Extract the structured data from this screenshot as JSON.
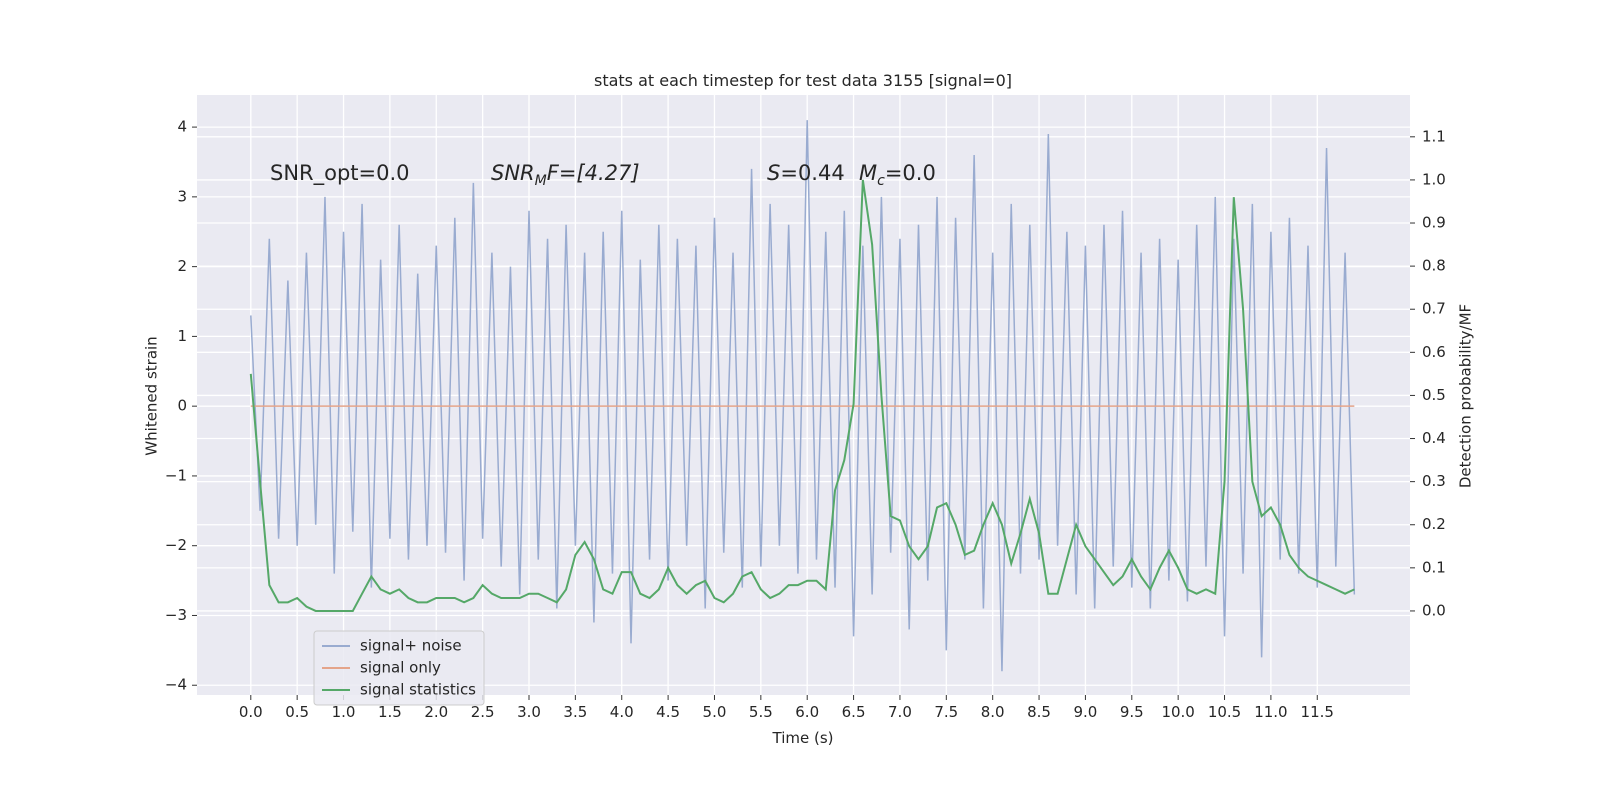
{
  "chart_data": {
    "type": "line",
    "title": "stats at each timestep for test data 3155 [signal=0]",
    "x_label": "Time (s)",
    "y_label": "Whitened strain",
    "y2_label": "Detection probability/MF",
    "annotations": [
      "SNR_opt=0.0",
      [
        "SNR",
        "M",
        "F=[4.27]"
      ],
      [
        "S",
        "=0.44"
      ],
      [
        "M",
        "c",
        "=0.0"
      ]
    ],
    "grid": true,
    "legend": "lower left",
    "xlim": [
      -0.58,
      12.5
    ],
    "ylim": [
      -4.14,
      4.46
    ],
    "y2lim": [
      -0.195,
      1.197
    ],
    "xticks": [
      {
        "value": 0,
        "label": "0.0"
      },
      {
        "value": 0.5,
        "label": "0.5"
      },
      {
        "value": 1,
        "label": "1.0"
      },
      {
        "value": 1.5,
        "label": "1.5"
      },
      {
        "value": 2,
        "label": "2.0"
      },
      {
        "value": 2.5,
        "label": "2.5"
      },
      {
        "value": 3,
        "label": "3.0"
      },
      {
        "value": 3.5,
        "label": "3.5"
      },
      {
        "value": 4,
        "label": "4.0"
      },
      {
        "value": 4.5,
        "label": "4.5"
      },
      {
        "value": 5,
        "label": "5.0"
      },
      {
        "value": 5.5,
        "label": "5.5"
      },
      {
        "value": 6,
        "label": "6.0"
      },
      {
        "value": 6.5,
        "label": "6.5"
      },
      {
        "value": 7,
        "label": "7.0"
      },
      {
        "value": 7.5,
        "label": "7.5"
      },
      {
        "value": 8,
        "label": "8.0"
      },
      {
        "value": 8.5,
        "label": "8.5"
      },
      {
        "value": 9,
        "label": "9.0"
      },
      {
        "value": 9.5,
        "label": "9.5"
      },
      {
        "value": 10,
        "label": "10.0"
      },
      {
        "value": 10.5,
        "label": "10.5"
      },
      {
        "value": 11,
        "label": "11.0"
      },
      {
        "value": 11.5,
        "label": "11.5"
      }
    ],
    "yticks": [
      {
        "value": -4,
        "label": "−4"
      },
      {
        "value": -3,
        "label": "−3"
      },
      {
        "value": -2,
        "label": "−2"
      },
      {
        "value": -1,
        "label": "−1"
      },
      0,
      1,
      2,
      3,
      4
    ],
    "y2ticks": [
      {
        "value": 0,
        "label": "0.0"
      },
      {
        "value": 0.1,
        "label": "0.1"
      },
      {
        "value": 0.2,
        "label": "0.2"
      },
      {
        "value": 0.3,
        "label": "0.3"
      },
      {
        "value": 0.4,
        "label": "0.4"
      },
      {
        "value": 0.5,
        "label": "0.5"
      },
      {
        "value": 0.6,
        "label": "0.6"
      },
      {
        "value": 0.7,
        "label": "0.7"
      },
      {
        "value": 0.8,
        "label": "0.8"
      },
      {
        "value": 0.9,
        "label": "0.9"
      },
      {
        "value": 1,
        "label": "1.0"
      },
      {
        "value": 1.1,
        "label": "1.1"
      }
    ],
    "x": [
      0,
      0.1,
      0.2,
      0.3,
      0.4,
      0.5,
      0.6,
      0.7,
      0.8,
      0.9,
      1,
      1.1,
      1.2,
      1.3,
      1.4,
      1.5,
      1.6,
      1.7,
      1.8,
      1.9,
      2,
      2.1,
      2.2,
      2.3,
      2.4,
      2.5,
      2.6,
      2.7,
      2.8,
      2.9,
      3,
      3.1,
      3.2,
      3.3,
      3.4,
      3.5,
      3.6,
      3.7,
      3.8,
      3.9,
      4,
      4.1,
      4.2,
      4.3,
      4.4,
      4.5,
      4.6,
      4.7,
      4.8,
      4.9,
      5,
      5.1,
      5.2,
      5.3,
      5.4,
      5.5,
      5.6,
      5.7,
      5.8,
      5.9,
      6,
      6.1,
      6.2,
      6.3,
      6.4,
      6.5,
      6.6,
      6.7,
      6.8,
      6.9,
      7,
      7.1,
      7.2,
      7.3,
      7.4,
      7.5,
      7.6,
      7.7,
      7.8,
      7.9,
      8,
      8.1,
      8.2,
      8.3,
      8.4,
      8.5,
      8.6,
      8.7,
      8.8,
      8.9,
      9,
      9.1,
      9.2,
      9.3,
      9.4,
      9.5,
      9.6,
      9.7,
      9.8,
      9.9,
      10,
      10.1,
      10.2,
      10.3,
      10.4,
      10.5,
      10.6,
      10.7,
      10.8,
      10.9,
      11,
      11.1,
      11.2,
      11.3,
      11.4,
      11.5,
      11.6,
      11.7,
      11.8,
      11.9
    ],
    "series": [
      {
        "name": "signal+ noise",
        "color": "#99abd0",
        "axis": "y",
        "values": [
          1.3,
          -1.5,
          2.4,
          -1.9,
          1.8,
          -2.0,
          2.2,
          -1.7,
          3.0,
          -2.4,
          2.5,
          -1.8,
          2.9,
          -2.6,
          2.1,
          -1.9,
          2.6,
          -2.2,
          1.9,
          -2.0,
          2.3,
          -2.1,
          2.7,
          -2.5,
          3.2,
          -1.9,
          2.2,
          -2.3,
          2.0,
          -2.7,
          2.8,
          -2.2,
          2.4,
          -2.9,
          2.6,
          -2.0,
          2.2,
          -3.1,
          2.5,
          -2.4,
          2.8,
          -3.4,
          2.1,
          -2.2,
          2.6,
          -2.5,
          2.4,
          -2.0,
          2.3,
          -2.9,
          2.7,
          -2.1,
          2.2,
          -2.6,
          3.4,
          -2.3,
          2.9,
          -2.0,
          2.6,
          -2.4,
          4.1,
          -2.2,
          2.5,
          -2.6,
          2.8,
          -3.3,
          2.3,
          -2.7,
          3.0,
          -2.1,
          2.4,
          -3.2,
          2.6,
          -2.5,
          3.0,
          -3.5,
          2.7,
          -2.2,
          3.6,
          -2.9,
          2.2,
          -3.8,
          2.9,
          -2.4,
          2.6,
          -2.2,
          3.9,
          -2.0,
          2.5,
          -2.7,
          2.3,
          -2.9,
          2.6,
          -2.3,
          2.8,
          -2.6,
          2.2,
          -2.9,
          2.4,
          -2.5,
          2.1,
          -2.8,
          2.6,
          -2.3,
          3.0,
          -3.3,
          2.4,
          -2.4,
          2.9,
          -3.6,
          2.5,
          -2.2,
          2.7,
          -2.4,
          2.3,
          -2.6,
          3.7,
          -2.3,
          2.2,
          -2.7
        ]
      },
      {
        "name": "signal only",
        "color": "#e4a48a",
        "axis": "y",
        "values": [
          0,
          0,
          0,
          0,
          0,
          0,
          0,
          0,
          0,
          0,
          0,
          0,
          0,
          0,
          0,
          0,
          0,
          0,
          0,
          0,
          0,
          0,
          0,
          0,
          0,
          0,
          0,
          0,
          0,
          0,
          0,
          0,
          0,
          0,
          0,
          0,
          0,
          0,
          0,
          0,
          0,
          0,
          0,
          0,
          0,
          0,
          0,
          0,
          0,
          0,
          0,
          0,
          0,
          0,
          0,
          0,
          0,
          0,
          0,
          0,
          0,
          0,
          0,
          0,
          0,
          0,
          0,
          0,
          0,
          0,
          0,
          0,
          0,
          0,
          0,
          0,
          0,
          0,
          0,
          0,
          0,
          0,
          0,
          0,
          0,
          0,
          0,
          0,
          0,
          0,
          0,
          0,
          0,
          0,
          0,
          0,
          0,
          0,
          0,
          0,
          0,
          0,
          0,
          0,
          0,
          0,
          0,
          0,
          0,
          0,
          0,
          0,
          0,
          0,
          0,
          0,
          0,
          0,
          0,
          0
        ]
      },
      {
        "name": "signal statistics",
        "color": "#55a868",
        "axis": "y2",
        "values": [
          0.55,
          0.3,
          0.06,
          0.02,
          0.02,
          0.03,
          0.01,
          0.0,
          0.0,
          0.0,
          0.0,
          0.0,
          0.04,
          0.08,
          0.05,
          0.04,
          0.05,
          0.03,
          0.02,
          0.02,
          0.03,
          0.03,
          0.03,
          0.02,
          0.03,
          0.06,
          0.04,
          0.03,
          0.03,
          0.03,
          0.04,
          0.04,
          0.03,
          0.02,
          0.05,
          0.13,
          0.16,
          0.12,
          0.05,
          0.04,
          0.09,
          0.09,
          0.04,
          0.03,
          0.05,
          0.1,
          0.06,
          0.04,
          0.06,
          0.07,
          0.03,
          0.02,
          0.04,
          0.08,
          0.09,
          0.05,
          0.03,
          0.04,
          0.06,
          0.06,
          0.07,
          0.07,
          0.05,
          0.28,
          0.35,
          0.48,
          1.0,
          0.85,
          0.5,
          0.22,
          0.21,
          0.15,
          0.12,
          0.15,
          0.24,
          0.25,
          0.2,
          0.13,
          0.14,
          0.2,
          0.25,
          0.2,
          0.11,
          0.18,
          0.26,
          0.18,
          0.04,
          0.04,
          0.12,
          0.2,
          0.15,
          0.12,
          0.09,
          0.06,
          0.08,
          0.12,
          0.08,
          0.05,
          0.1,
          0.14,
          0.1,
          0.05,
          0.04,
          0.05,
          0.04,
          0.3,
          0.96,
          0.7,
          0.3,
          0.22,
          0.24,
          0.2,
          0.13,
          0.1,
          0.08,
          0.07,
          0.06,
          0.05,
          0.04,
          0.05
        ]
      }
    ]
  }
}
